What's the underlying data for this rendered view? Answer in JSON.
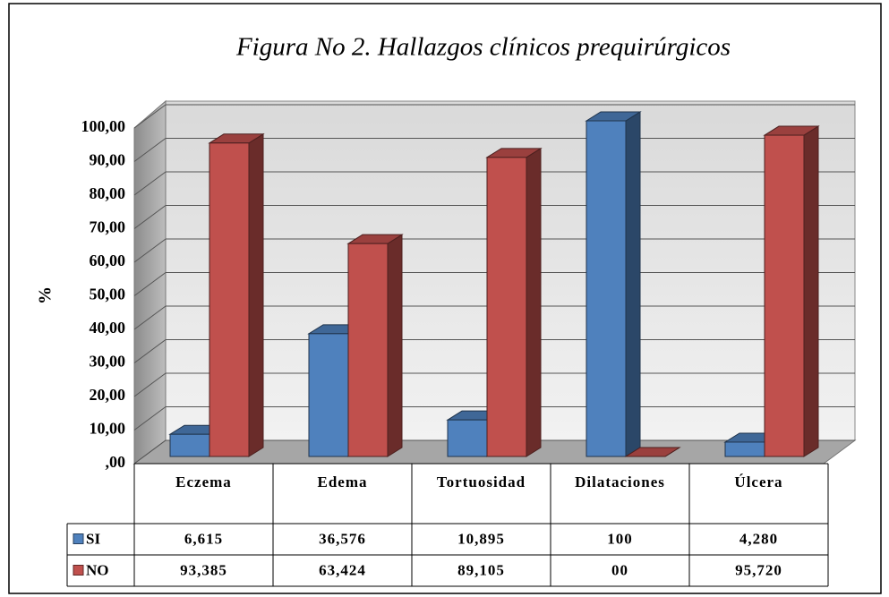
{
  "chart_data": {
    "type": "bar3d",
    "title": "Figura No 2. Hallazgos clínicos prequirúrgicos",
    "y_label": "%",
    "categories": [
      "Eczema",
      "Edema",
      "Tortuosidad",
      "Dilataciones",
      "Úlcera"
    ],
    "series": [
      {
        "name": "SI",
        "color": "#4f81bd",
        "values": [
          6.615,
          36.576,
          10.895,
          100,
          4.28
        ],
        "value_labels": [
          "6,615",
          "36,576",
          "10,895",
          "100",
          "4,280"
        ]
      },
      {
        "name": "NO",
        "color": "#c0504d",
        "values": [
          93.385,
          63.424,
          89.105,
          0,
          95.72
        ],
        "value_labels": [
          "93,385",
          "63,424",
          "89,105",
          "00",
          "95,720"
        ]
      }
    ],
    "ylim": [
      0,
      100
    ],
    "yticks": [
      {
        "value": 0,
        "label": ",00"
      },
      {
        "value": 10,
        "label": "10,00"
      },
      {
        "value": 20,
        "label": "20,00"
      },
      {
        "value": 30,
        "label": "30,00"
      },
      {
        "value": 40,
        "label": "40,00"
      },
      {
        "value": 50,
        "label": "50,00"
      },
      {
        "value": 60,
        "label": "60,00"
      },
      {
        "value": 70,
        "label": "70,00"
      },
      {
        "value": 80,
        "label": "80,00"
      },
      {
        "value": 90,
        "label": "90,00"
      },
      {
        "value": 100,
        "label": "100,00"
      }
    ],
    "grid": true
  }
}
